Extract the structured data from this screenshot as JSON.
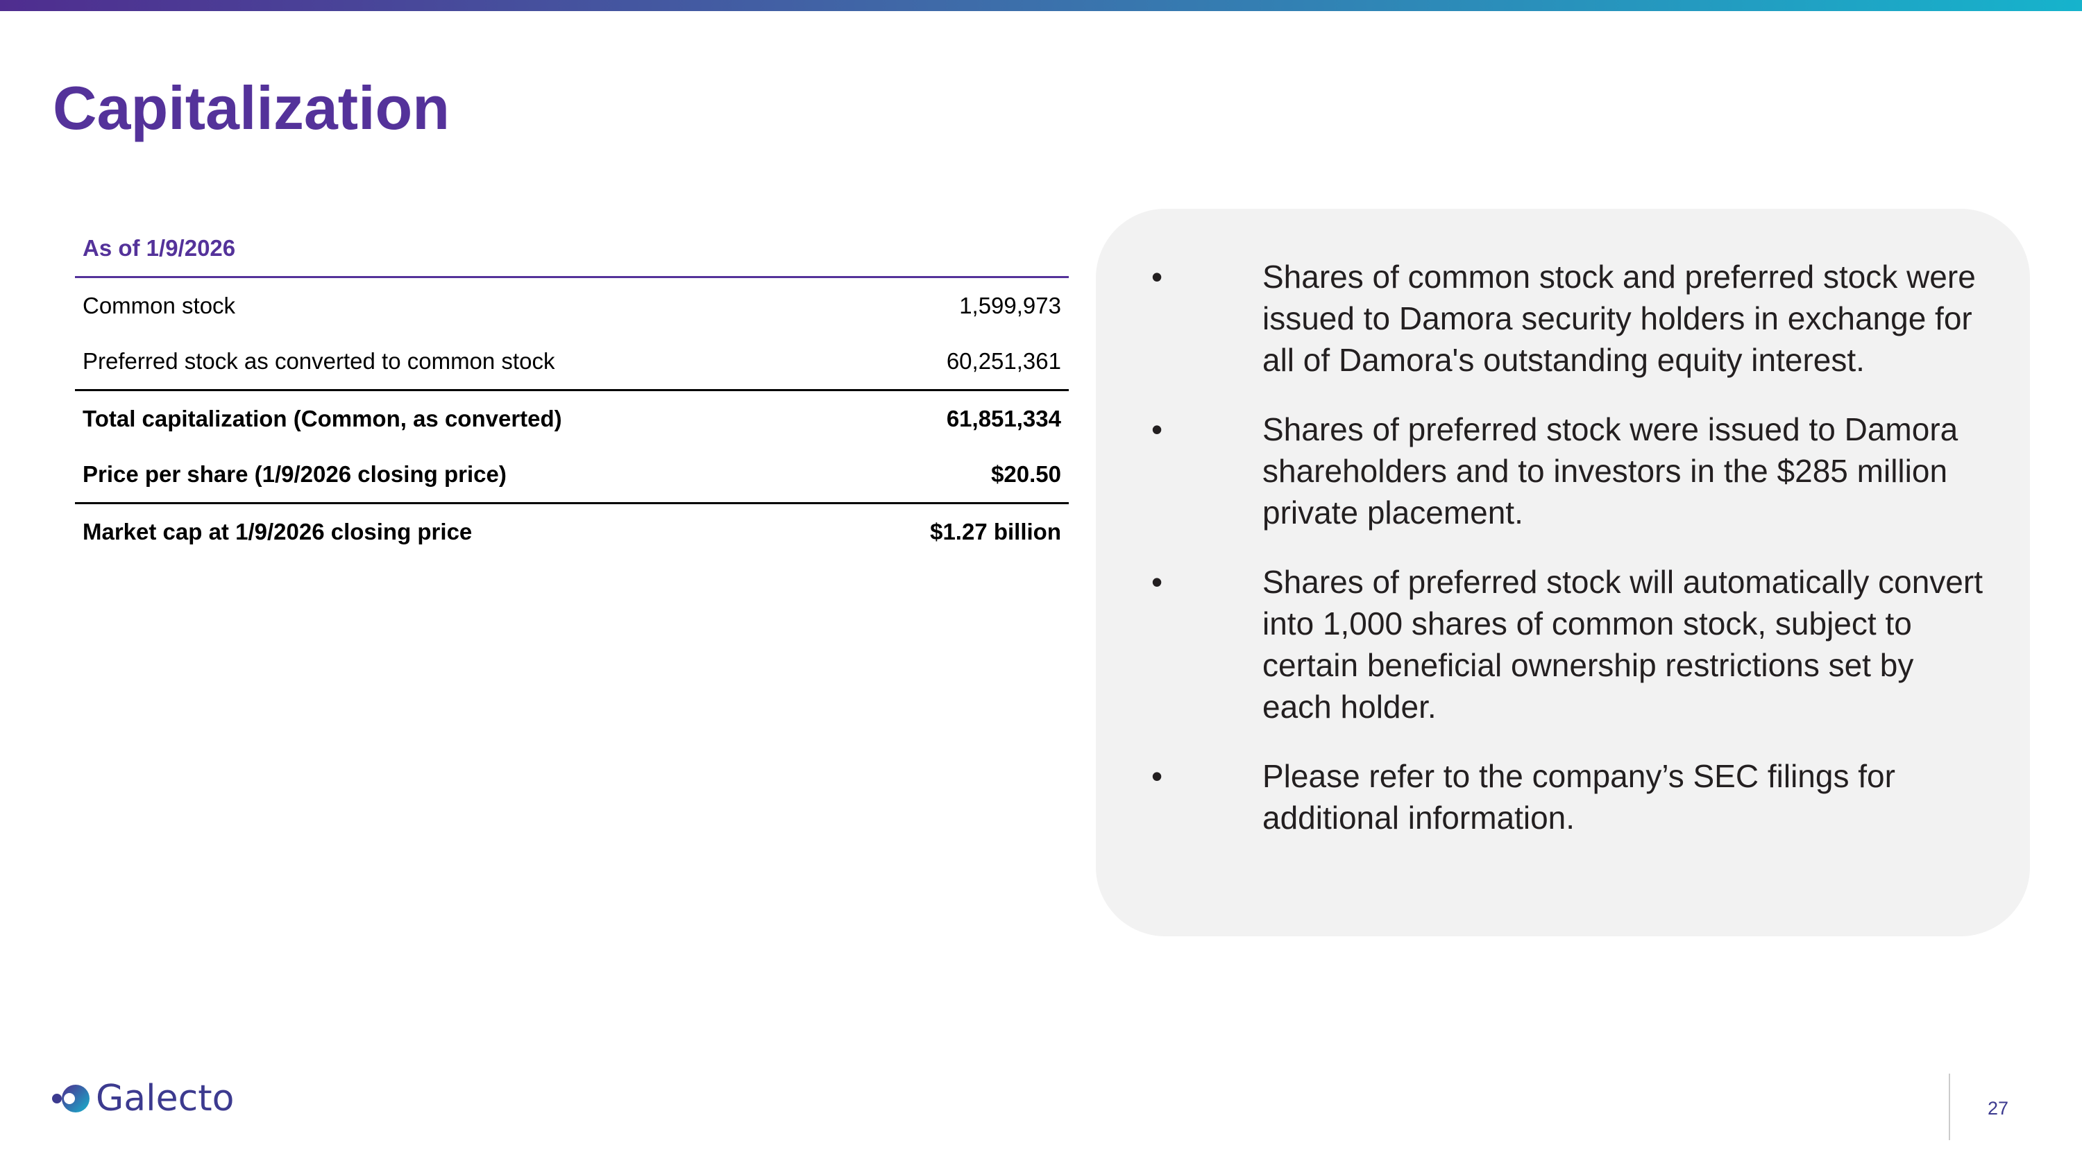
{
  "title": "Capitalization",
  "table": {
    "header": "As of 1/9/2026",
    "rows": [
      {
        "label": "Common stock",
        "value": "1,599,973"
      },
      {
        "label": "Preferred stock as converted to common stock",
        "value": "60,251,361"
      },
      {
        "label": "Total capitalization (Common, as converted)",
        "value": "61,851,334"
      },
      {
        "label": "Price per share (1/9/2026 closing price)",
        "value": "$20.50"
      },
      {
        "label": "Market cap at 1/9/2026 closing price",
        "value": "$1.27 billion"
      }
    ]
  },
  "notes": {
    "bullet_glyph": "•",
    "items": [
      "Shares of common stock and preferred stock were issued to Damora security holders in exchange for all of Damora's outstanding equity interest.",
      "Shares of preferred stock were issued to Damora shareholders and to investors in the $285 million private placement.",
      "Shares of preferred stock will automatically convert into 1,000 shares of common stock, subject to certain beneficial ownership restrictions set by each holder.",
      "Please refer to the company’s SEC filings for additional information."
    ]
  },
  "footer": {
    "logo_text": "Galecto",
    "page_number": "27"
  },
  "colors": {
    "title": "#54329a",
    "accent_start": "#4f2d8f",
    "accent_end": "#16b3cc",
    "panel": "#f2f2f2"
  }
}
